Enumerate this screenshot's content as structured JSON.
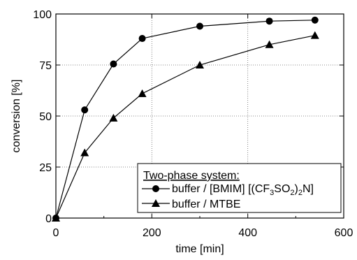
{
  "chart_data": {
    "type": "line",
    "xlabel": "time [min]",
    "ylabel": "conversion [%]",
    "xlim": [
      0,
      600
    ],
    "ylim": [
      0,
      100
    ],
    "xticks": [
      "0",
      "200",
      "400",
      "600"
    ],
    "yticks": [
      "0",
      "25",
      "50",
      "75",
      "100"
    ],
    "grid": "dotted at x=200,400 and y=25,50,75",
    "legend": {
      "placement": "bottom-right",
      "title": "Two-phase system:"
    },
    "series": [
      {
        "name": "buffer / [BMIM] [(CF3SO2)2N]",
        "label_parts": {
          "a": "buffer / [BMIM] [(CF",
          "s1": "3",
          "b": "SO",
          "s2": "2",
          "c": ")",
          "s3": "2",
          "d": "N]"
        },
        "marker": "circle",
        "x": [
          0,
          60,
          120,
          180,
          300,
          445,
          540
        ],
        "y": [
          0,
          53,
          75.5,
          88,
          94,
          96.5,
          97
        ]
      },
      {
        "name": "buffer / MTBE",
        "marker": "triangle",
        "x": [
          0,
          60,
          120,
          180,
          300,
          445,
          540
        ],
        "y": [
          0,
          32,
          49,
          61,
          75,
          85,
          89.5
        ]
      }
    ]
  }
}
